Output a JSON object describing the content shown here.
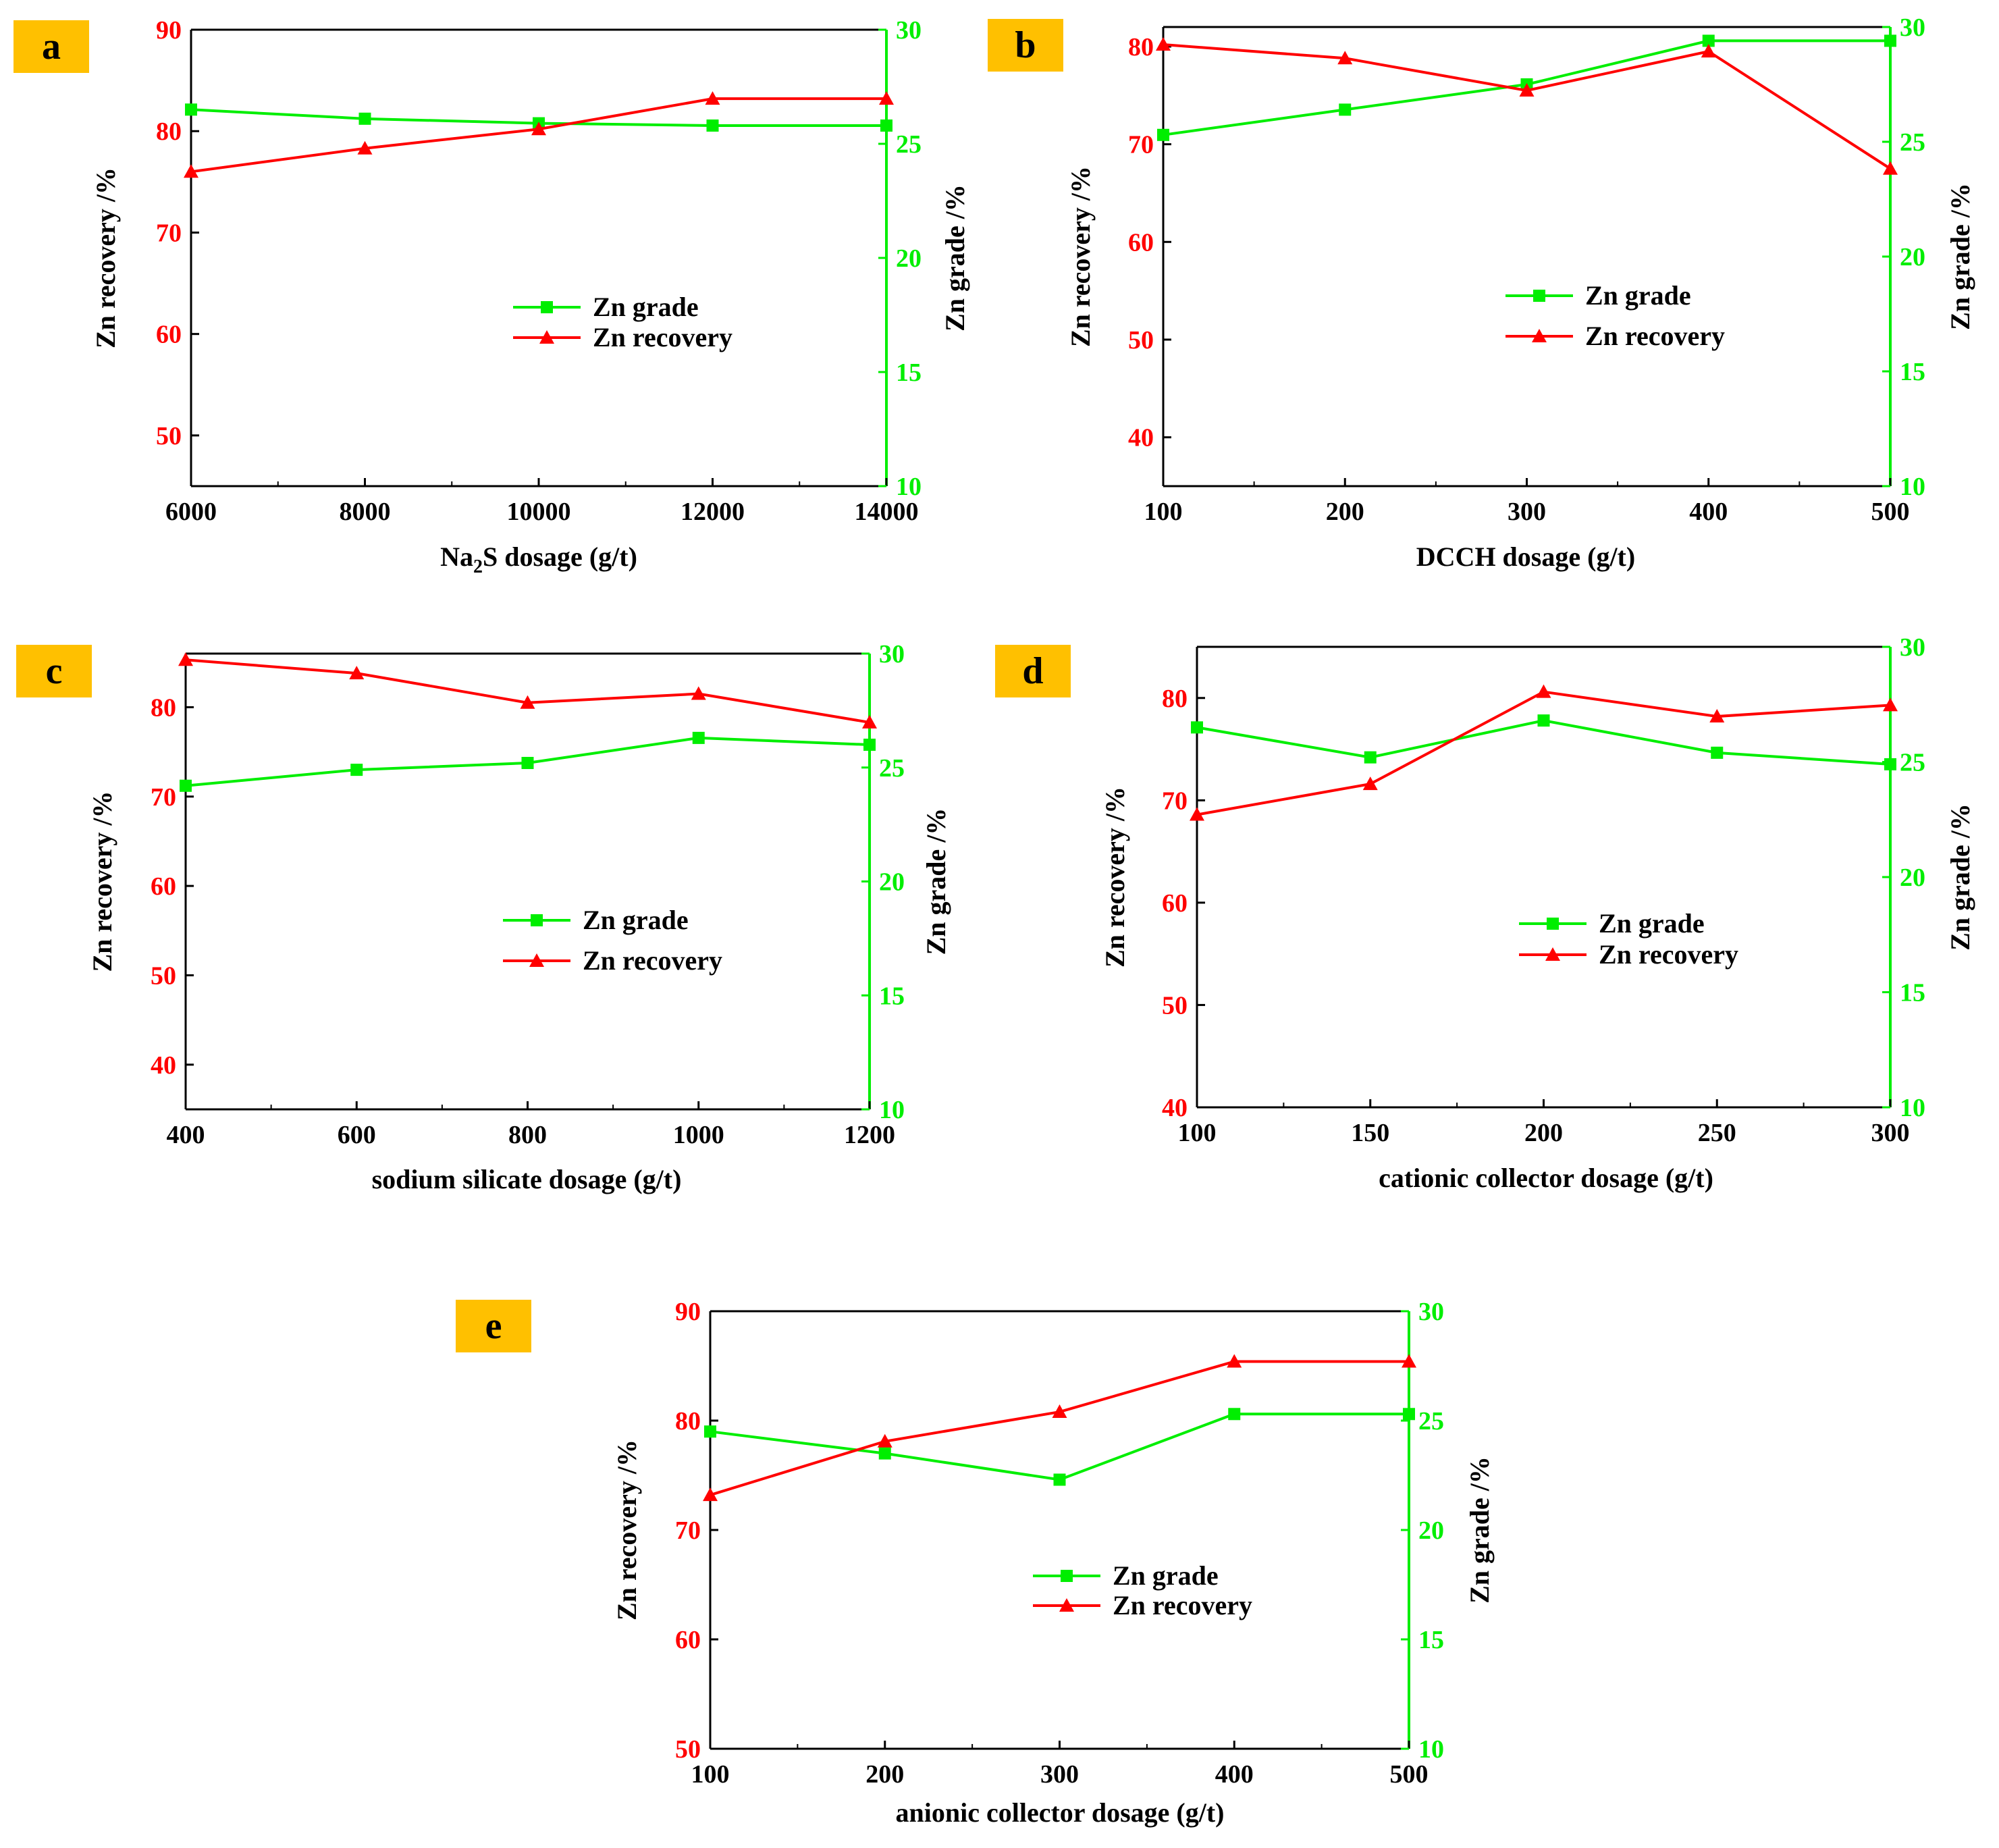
{
  "colors": {
    "recovery": "#ff0000",
    "grade": "#00ee00",
    "axis": "#000000",
    "badge": "#ffc000"
  },
  "chart_data": [
    {
      "id": "a",
      "type": "line",
      "panel_label": "a",
      "xlabel": "Na2S dosage (g/t)",
      "xlabel_prefix": "Na",
      "xlabel_sub": "2",
      "xlabel_suffix": "S dosage (g/t)",
      "ylabel": "Zn recovery /%",
      "y2label": "Zn grade /%",
      "x": [
        6000,
        8000,
        10000,
        12000,
        14000
      ],
      "xlim": [
        6000,
        14000
      ],
      "xticks": [
        "6000",
        "8000",
        "10000",
        "12000",
        "14000"
      ],
      "ylim": [
        45,
        90
      ],
      "yticks": [
        "50",
        "60",
        "70",
        "80",
        "90"
      ],
      "y2lim": [
        10,
        30
      ],
      "y2ticks": [
        "10",
        "15",
        "20",
        "25",
        "30"
      ],
      "series": [
        {
          "name": "Zn grade",
          "axis": "right",
          "marker": "square",
          "values": [
            26.5,
            26.1,
            25.9,
            25.8,
            25.8
          ]
        },
        {
          "name": "Zn recovery",
          "axis": "left",
          "marker": "triangle",
          "values": [
            76.0,
            78.3,
            80.2,
            83.2,
            83.2
          ]
        }
      ],
      "legend": [
        "Zn grade",
        "Zn recovery"
      ]
    },
    {
      "id": "b",
      "type": "line",
      "panel_label": "b",
      "xlabel": "DCCH dosage (g/t)",
      "ylabel": "Zn recovery /%",
      "y2label": "Zn grade /%",
      "x": [
        100,
        200,
        300,
        400,
        500
      ],
      "xlim": [
        100,
        500
      ],
      "xticks": [
        "100",
        "200",
        "300",
        "400",
        "500"
      ],
      "ylim": [
        35,
        82
      ],
      "yticks": [
        "40",
        "50",
        "60",
        "70",
        "80"
      ],
      "y2lim": [
        10,
        30
      ],
      "y2ticks": [
        "10",
        "15",
        "20",
        "25",
        "30"
      ],
      "series": [
        {
          "name": "Zn grade",
          "axis": "right",
          "marker": "square",
          "values": [
            25.3,
            26.4,
            27.5,
            29.4,
            29.4
          ]
        },
        {
          "name": "Zn recovery",
          "axis": "left",
          "marker": "triangle",
          "values": [
            80.2,
            78.8,
            75.5,
            79.5,
            67.5
          ]
        }
      ],
      "legend": [
        "Zn grade",
        "Zn recovery"
      ]
    },
    {
      "id": "c",
      "type": "line",
      "panel_label": "c",
      "xlabel": "sodium silicate dosage (g/t)",
      "ylabel": "Zn recovery /%",
      "y2label": "Zn grade /%",
      "x": [
        400,
        600,
        800,
        1000,
        1200
      ],
      "xlim": [
        400,
        1200
      ],
      "xticks": [
        "400",
        "600",
        "800",
        "1000",
        "1200"
      ],
      "ylim": [
        35,
        86
      ],
      "yticks": [
        "40",
        "50",
        "60",
        "70",
        "80"
      ],
      "y2lim": [
        10,
        30
      ],
      "y2ticks": [
        "10",
        "15",
        "20",
        "25",
        "30"
      ],
      "series": [
        {
          "name": "Zn grade",
          "axis": "right",
          "marker": "square",
          "values": [
            24.2,
            24.9,
            25.2,
            26.3,
            26.0
          ]
        },
        {
          "name": "Zn recovery",
          "axis": "left",
          "marker": "triangle",
          "values": [
            85.3,
            83.8,
            80.5,
            81.5,
            78.3
          ]
        }
      ],
      "legend": [
        "Zn grade",
        "Zn recovery"
      ]
    },
    {
      "id": "d",
      "type": "line",
      "panel_label": "d",
      "xlabel": "cationic collector  dosage (g/t)",
      "ylabel": "Zn recovery /%",
      "y2label": "Zn grade /%",
      "x": [
        100,
        150,
        200,
        250,
        300
      ],
      "xlim": [
        100,
        300
      ],
      "xticks": [
        "100",
        "150",
        "200",
        "250",
        "300"
      ],
      "ylim": [
        40,
        85
      ],
      "yticks": [
        "40",
        "50",
        "60",
        "70",
        "80"
      ],
      "y2lim": [
        10,
        30
      ],
      "y2ticks": [
        "10",
        "15",
        "20",
        "25",
        "30"
      ],
      "series": [
        {
          "name": "Zn grade",
          "axis": "right",
          "marker": "square",
          "values": [
            26.5,
            25.2,
            26.8,
            25.4,
            24.9
          ]
        },
        {
          "name": "Zn recovery",
          "axis": "left",
          "marker": "triangle",
          "values": [
            68.6,
            71.6,
            80.6,
            78.2,
            79.3
          ]
        }
      ],
      "legend": [
        "Zn grade",
        "Zn recovery"
      ]
    },
    {
      "id": "e",
      "type": "line",
      "panel_label": "e",
      "xlabel": "anionic collector  dosage (g/t)",
      "ylabel": "Zn recovery /%",
      "y2label": "Zn grade /%",
      "x": [
        100,
        200,
        300,
        400,
        500
      ],
      "xlim": [
        100,
        500
      ],
      "xticks": [
        "100",
        "200",
        "300",
        "400",
        "500"
      ],
      "ylim": [
        50,
        90
      ],
      "yticks": [
        "50",
        "60",
        "70",
        "80",
        "90"
      ],
      "y2lim": [
        10,
        30
      ],
      "y2ticks": [
        "10",
        "15",
        "20",
        "25",
        "30"
      ],
      "series": [
        {
          "name": "Zn grade",
          "axis": "right",
          "marker": "square",
          "values": [
            24.5,
            23.5,
            22.3,
            25.3,
            25.3
          ]
        },
        {
          "name": "Zn recovery",
          "axis": "left",
          "marker": "triangle",
          "values": [
            73.2,
            78.1,
            80.8,
            85.4,
            85.4
          ]
        }
      ],
      "legend": [
        "Zn grade",
        "Zn recovery"
      ]
    }
  ]
}
